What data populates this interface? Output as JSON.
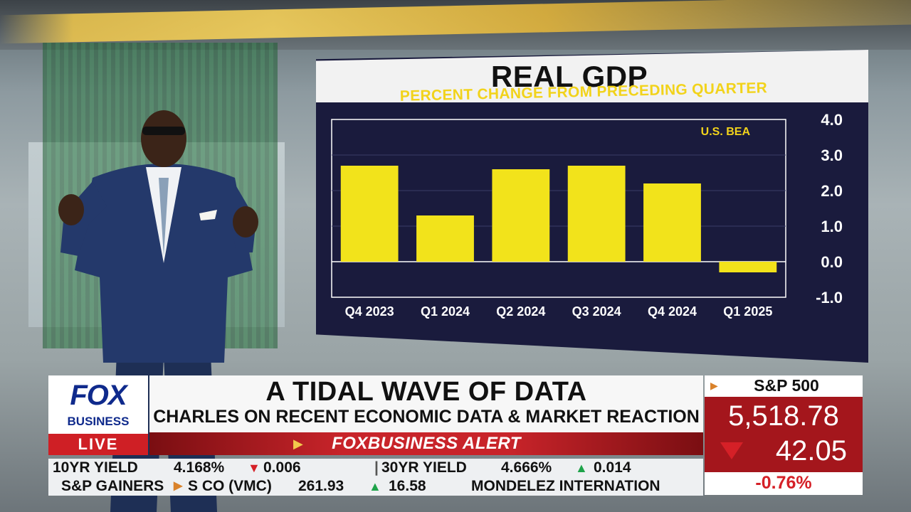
{
  "broadcast": {
    "logo": {
      "fox": "FOX",
      "business": "BUSINESS",
      "live": "LIVE"
    },
    "headline": "A TIDAL WAVE OF DATA",
    "subheadline": "CHARLES ON RECENT ECONOMIC DATA & MARKET REACTION",
    "alert": "FOXBUSINESS ALERT",
    "ticker": {
      "yields": [
        {
          "label": "10YR YIELD",
          "value": "4.168%",
          "direction": "down",
          "change": "0.006"
        },
        {
          "label": "30YR YIELD",
          "value": "4.666%",
          "direction": "up",
          "change": "0.014"
        }
      ],
      "gainers": {
        "label": "S&P GAINERS",
        "fragment": "S CO (VMC)",
        "price": "261.93",
        "direction": "up",
        "change": "16.58",
        "next": "MONDELEZ INTERNATION"
      }
    },
    "index": {
      "name": "S&P 500",
      "value": "5,518.78",
      "direction": "down",
      "change": "42.05",
      "percent": "-0.76%"
    }
  },
  "chart_data": {
    "type": "bar",
    "title": "REAL GDP",
    "subtitle": "PERCENT CHANGE FROM PRECEDING QUARTER",
    "source": "U.S. BEA",
    "categories": [
      "Q4 2023",
      "Q1 2024",
      "Q2 2024",
      "Q3 2024",
      "Q4 2024",
      "Q1 2025"
    ],
    "values": [
      2.7,
      1.3,
      2.6,
      2.7,
      2.2,
      -0.3
    ],
    "ylim": [
      -1.0,
      4.0
    ],
    "yticks": [
      "4.0",
      "3.0",
      "2.0",
      "1.0",
      "0.0",
      "-1.0"
    ],
    "ytick_values": [
      4.0,
      3.0,
      2.0,
      1.0,
      0.0,
      -1.0
    ],
    "grid": true,
    "colors": {
      "bar": "#f2e31b",
      "background": "#1a1b3d",
      "text": "#ffffff",
      "accent": "#f2d31b"
    }
  }
}
